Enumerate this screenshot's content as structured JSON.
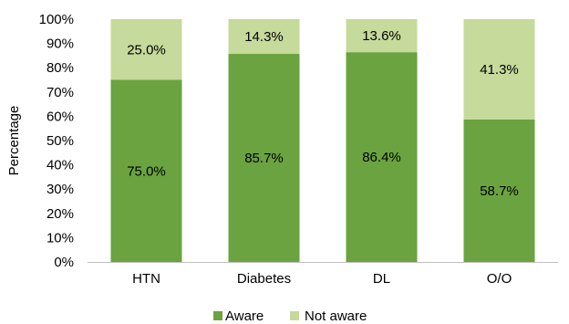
{
  "chart_data": {
    "type": "bar",
    "stacked": true,
    "categories": [
      "HTN",
      "Diabetes",
      "DL",
      "O/O"
    ],
    "series": [
      {
        "name": "Aware",
        "values": [
          75.0,
          85.7,
          86.4,
          58.7
        ],
        "labels": [
          "75.0%",
          "85.7%",
          "86.4%",
          "58.7%"
        ],
        "color": "#6aa33f"
      },
      {
        "name": "Not aware",
        "values": [
          25.0,
          14.3,
          13.6,
          41.3
        ],
        "labels": [
          "25.0%",
          "14.3%",
          "13.6%",
          "41.3%"
        ],
        "color": "#c5da9b"
      }
    ],
    "ylabel": "Percentage",
    "xlabel": "",
    "ylim": [
      0,
      100
    ],
    "yticks": [
      "0%",
      "10%",
      "20%",
      "30%",
      "40%",
      "50%",
      "60%",
      "70%",
      "80%",
      "90%",
      "100%"
    ],
    "grid": false,
    "legend": "bottom"
  }
}
